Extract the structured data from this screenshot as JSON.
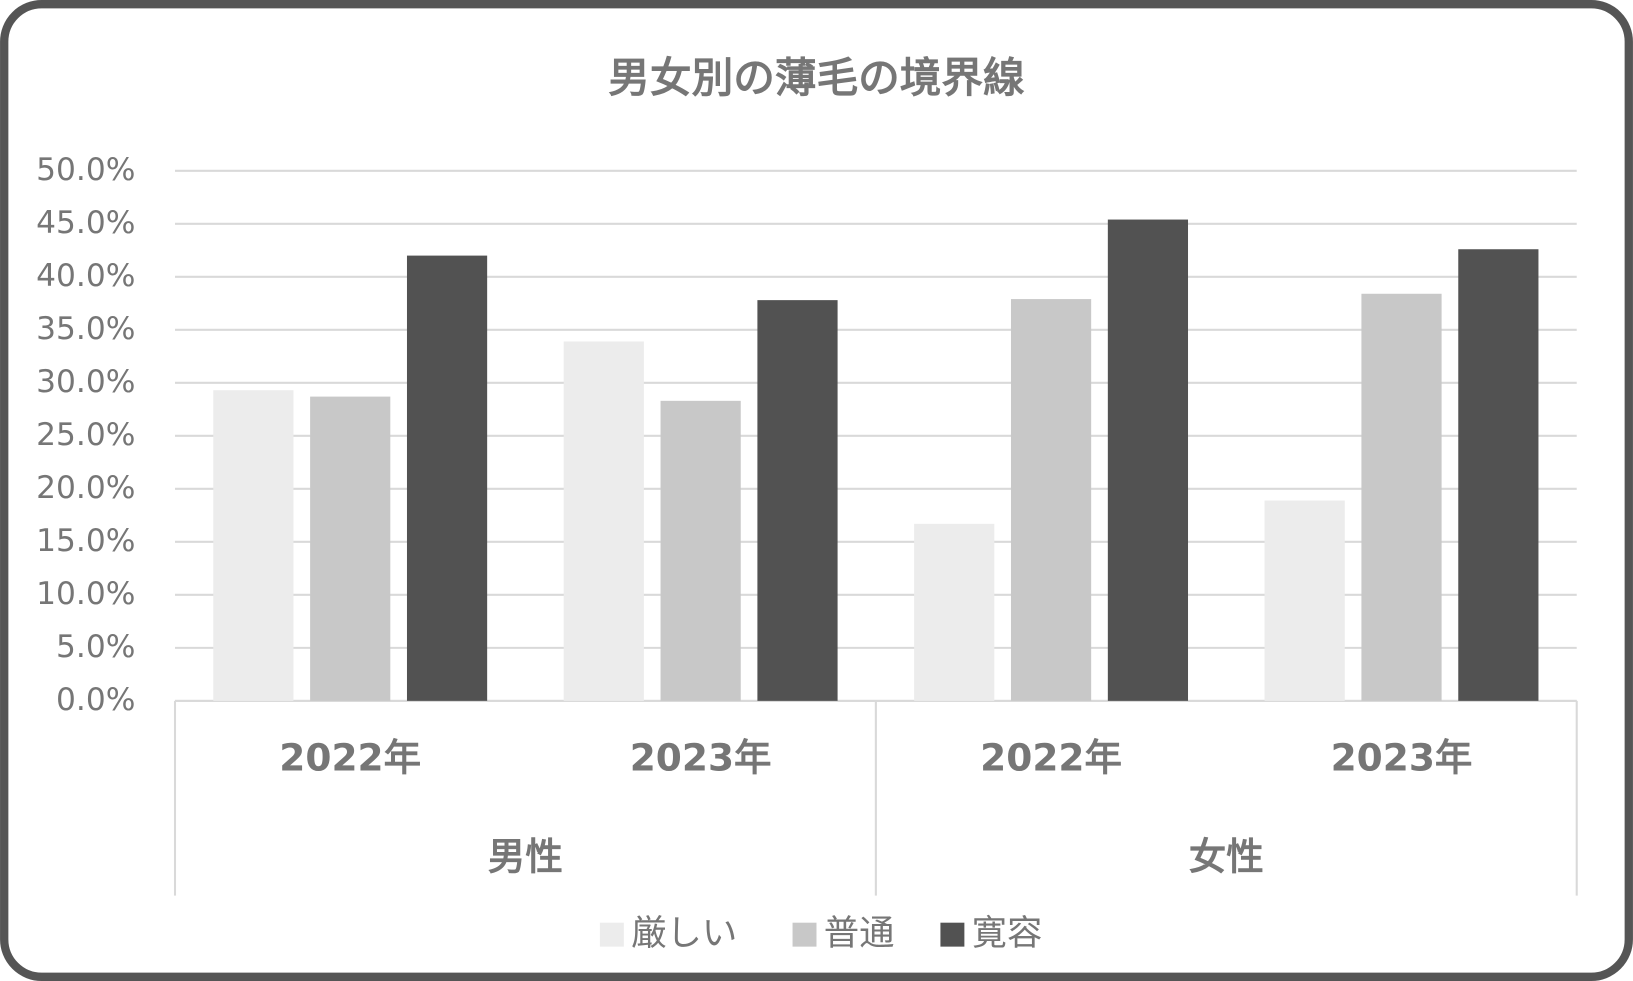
{
  "chart_data": {
    "type": "bar",
    "title": "男女別の薄毛の境界線",
    "groups": [
      {
        "name": "男性",
        "categories": [
          "2022年",
          "2023年"
        ]
      },
      {
        "name": "女性",
        "categories": [
          "2022年",
          "2023年"
        ]
      }
    ],
    "series": [
      {
        "name": "厳しい",
        "color": "#ececec",
        "values": [
          29.3,
          33.9,
          16.7,
          18.9
        ]
      },
      {
        "name": "普通",
        "color": "#c8c8c8",
        "values": [
          28.7,
          28.3,
          37.9,
          38.4
        ]
      },
      {
        "name": "寛容",
        "color": "#525252",
        "values": [
          42.0,
          37.8,
          45.4,
          42.6
        ]
      }
    ],
    "ylim": [
      0,
      50
    ],
    "yticks": [
      {
        "value": 0,
        "label": "0.0%"
      },
      {
        "value": 5,
        "label": "5.0%"
      },
      {
        "value": 10,
        "label": "10.0%"
      },
      {
        "value": 15,
        "label": "15.0%"
      },
      {
        "value": 20,
        "label": "20.0%"
      },
      {
        "value": 25,
        "label": "25.0%"
      },
      {
        "value": 30,
        "label": "30.0%"
      },
      {
        "value": 35,
        "label": "35.0%"
      },
      {
        "value": 40,
        "label": "40.0%"
      },
      {
        "value": 45,
        "label": "45.0%"
      },
      {
        "value": 50,
        "label": "50.0%"
      }
    ],
    "grid": true,
    "legend": "bottom"
  }
}
